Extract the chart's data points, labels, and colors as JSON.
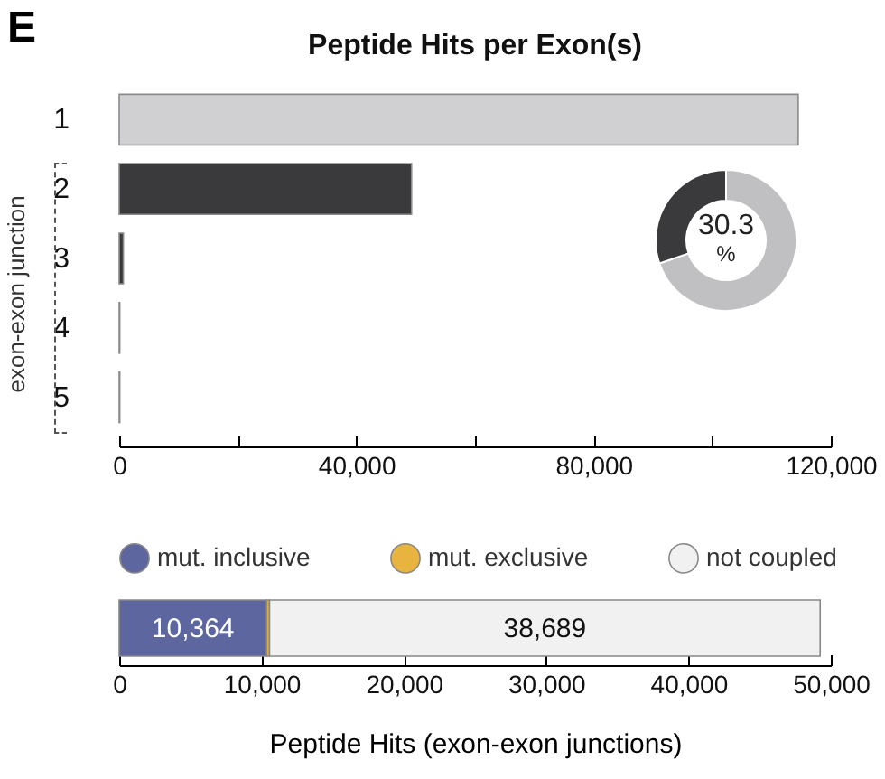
{
  "chart_data": [
    {
      "type": "bar",
      "orientation": "horizontal",
      "title": "Peptide Hits per Exon(s)",
      "ylabel": "exon-exon junction",
      "annotations": [
        "E"
      ],
      "categories": [
        "1",
        "2",
        "3",
        "4",
        "5"
      ],
      "values": [
        114500,
        49300,
        700,
        100,
        100
      ],
      "colors": [
        "#d0d0d2",
        "#3a3a3c",
        "#3a3a3c",
        "#3a3a3c",
        "#3a3a3c"
      ],
      "xlim": [
        0,
        120000
      ],
      "xticks": [
        0,
        {
          "value": 20000,
          "label": null
        },
        {
          "value": 40000,
          "label": "40,000"
        },
        {
          "value": 60000,
          "label": null
        },
        {
          "value": 80000,
          "label": "80,000"
        },
        {
          "value": 100000,
          "label": null
        },
        {
          "value": 120000,
          "label": "120,000"
        }
      ]
    },
    {
      "type": "donut",
      "categories": [
        null,
        null
      ],
      "values": [
        69.7,
        30.3
      ],
      "colors": [
        "#c0c0c2",
        "#3a3a3c"
      ],
      "annotations": [
        "30.3",
        "%"
      ]
    },
    {
      "type": "bar",
      "orientation": "horizontal",
      "stacked": true,
      "legend": "top",
      "xlabel": "Peptide Hits (exon-exon junctions)",
      "categories": [
        null
      ],
      "series": [
        {
          "name": "mut. inclusive",
          "color": "#5e66a0",
          "values": [
            10364
          ],
          "value_labels": [
            "10,364"
          ]
        },
        {
          "name": "mut. exclusive",
          "color": "#e8b33e",
          "values": [
            200
          ],
          "value_labels": [
            null
          ]
        },
        {
          "name": "not coupled",
          "color": "#f1f1f1",
          "values": [
            38689
          ],
          "value_labels": [
            "38,689"
          ]
        }
      ],
      "xlim": [
        0,
        50000
      ],
      "xticks": [
        0,
        {
          "value": 10000,
          "label": "10,000"
        },
        {
          "value": 20000,
          "label": "20,000"
        },
        {
          "value": 30000,
          "label": "30,000"
        },
        {
          "value": 40000,
          "label": "40,000"
        },
        {
          "value": 50000,
          "label": "50,000"
        }
      ]
    }
  ]
}
